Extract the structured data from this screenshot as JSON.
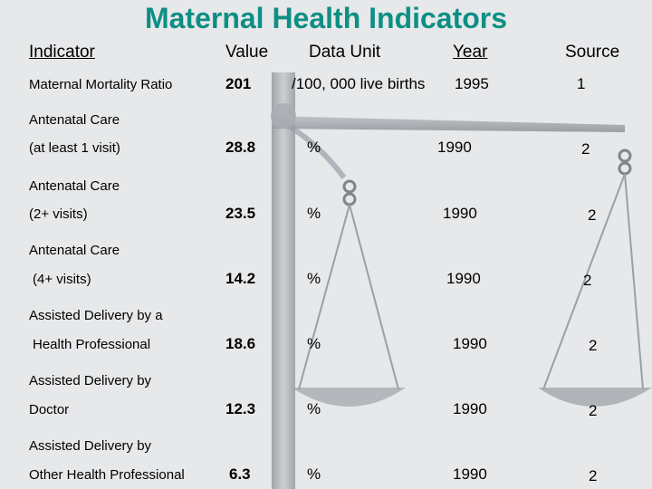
{
  "slide": {
    "title": "Maternal Health Indicators"
  },
  "headers": {
    "indicator": "Indicator",
    "value": "Value",
    "data_unit": "Data Unit",
    "year": "Year",
    "source": "Source"
  },
  "rows": [
    {
      "label_line1": "Maternal Mortality Ratio",
      "label_line2": "",
      "value": "201",
      "unit": "/100, 000 live births",
      "year": "1995",
      "source": "1"
    },
    {
      "label_line1": "Antenatal Care",
      "label_line2": "(at least 1 visit)",
      "value": "28.8",
      "unit": "%",
      "year": "1990",
      "source": "2"
    },
    {
      "label_line1": "Antenatal Care",
      "label_line2": "(2+ visits)",
      "value": "23.5",
      "unit": "%",
      "year": "1990",
      "source": "2"
    },
    {
      "label_line1": "Antenatal Care",
      "label_line2": "(4+ visits)",
      "value": "14.2",
      "unit": "%",
      "year": "1990",
      "source": "2"
    },
    {
      "label_line1": "Assisted Delivery by a",
      "label_line2": "Health Professional",
      "value": "18.6",
      "unit": "%",
      "year": "1990",
      "source": "2"
    },
    {
      "label_line1": "Assisted Delivery by",
      "label_line2": "Doctor",
      "value": "12.3",
      "unit": "%",
      "year": "1990",
      "source": "2"
    },
    {
      "label_line1": "Assisted Delivery by",
      "label_line2": "Other Health Professional",
      "value": "6.3",
      "unit": "%",
      "year": "1990",
      "source": "2"
    }
  ],
  "background": {
    "icon": "balance-scale-icon",
    "color_base": "#e6e8ea",
    "color_scale": "#9aa0a6"
  }
}
